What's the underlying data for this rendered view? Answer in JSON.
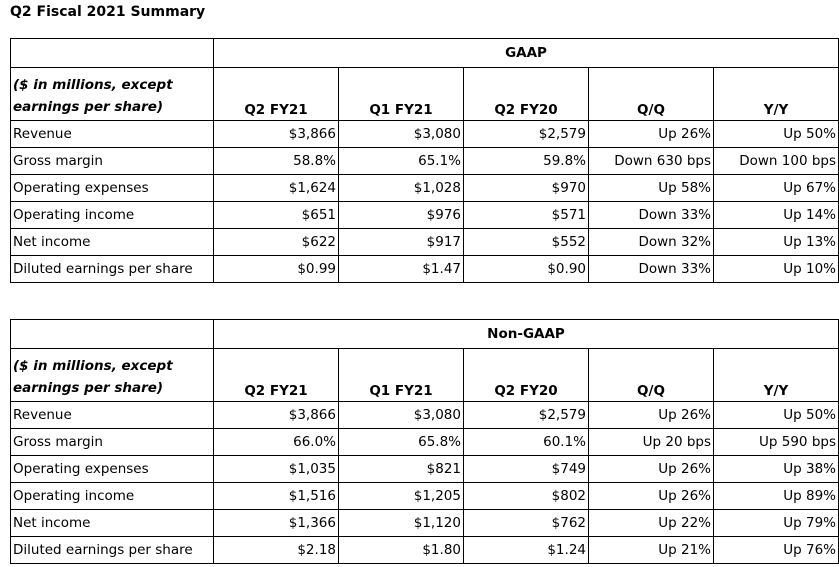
{
  "title": "Q2 Fiscal 2021 Summary",
  "columns": [
    "Q2 FY21",
    "Q1 FY21",
    "Q2 FY20",
    "Q/Q",
    "Y/Y"
  ],
  "units_note": "($ in millions, except earnings per share)",
  "gaap": {
    "heading": "GAAP",
    "rows": [
      {
        "label": "Revenue",
        "values": [
          "$3,866",
          "$3,080",
          "$2,579",
          "Up 26%",
          "Up 50%"
        ]
      },
      {
        "label": "Gross margin",
        "values": [
          "58.8%",
          "65.1%",
          "59.8%",
          "Down 630 bps",
          "Down 100 bps"
        ]
      },
      {
        "label": "Operating expenses",
        "values": [
          "$1,624",
          "$1,028",
          "$970",
          "Up 58%",
          "Up 67%"
        ]
      },
      {
        "label": "Operating income",
        "values": [
          "$651",
          "$976",
          "$571",
          "Down 33%",
          "Up 14%"
        ]
      },
      {
        "label": "Net income",
        "values": [
          "$622",
          "$917",
          "$552",
          "Down 32%",
          "Up 13%"
        ]
      },
      {
        "label": "Diluted earnings per share",
        "values": [
          "$0.99",
          "$1.47",
          "$0.90",
          "Down 33%",
          "Up 10%"
        ]
      }
    ]
  },
  "nongaap": {
    "heading": "Non-GAAP",
    "rows": [
      {
        "label": "Revenue",
        "values": [
          "$3,866",
          "$3,080",
          "$2,579",
          "Up 26%",
          "Up 50%"
        ]
      },
      {
        "label": "Gross margin",
        "values": [
          "66.0%",
          "65.8%",
          "60.1%",
          "Up 20 bps",
          "Up 590 bps"
        ]
      },
      {
        "label": "Operating expenses",
        "values": [
          "$1,035",
          "$821",
          "$749",
          "Up 26%",
          "Up 38%"
        ]
      },
      {
        "label": "Operating income",
        "values": [
          "$1,516",
          "$1,205",
          "$802",
          "Up 26%",
          "Up 89%"
        ]
      },
      {
        "label": "Net income",
        "values": [
          "$1,366",
          "$1,120",
          "$762",
          "Up 22%",
          "Up 79%"
        ]
      },
      {
        "label": "Diluted earnings per share",
        "values": [
          "$2.18",
          "$1.80",
          "$1.24",
          "Up 21%",
          "Up 76%"
        ]
      }
    ]
  }
}
